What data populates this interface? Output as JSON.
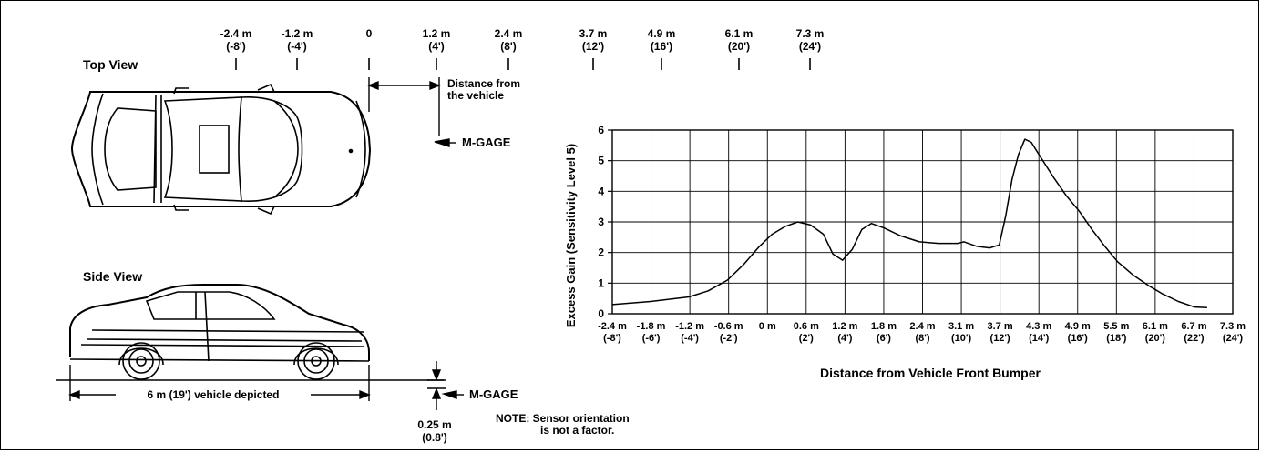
{
  "views": {
    "top_view": "Top View",
    "side_view": "Side View"
  },
  "top_ruler": {
    "ticks": [
      {
        "m": "-2.4 m",
        "ft": "(-8')"
      },
      {
        "m": "-1.2 m",
        "ft": "(-4')"
      },
      {
        "m": "0",
        "ft": ""
      },
      {
        "m": "1.2 m",
        "ft": "(4')"
      },
      {
        "m": "2.4 m",
        "ft": "(8')"
      },
      {
        "m": "3.7 m",
        "ft": "(12')"
      },
      {
        "m": "4.9 m",
        "ft": "(16')"
      },
      {
        "m": "6.1 m",
        "ft": "(20')"
      },
      {
        "m": "7.3 m",
        "ft": "(24')"
      }
    ]
  },
  "labels": {
    "distance_line1": "Distance from",
    "distance_line2": "the vehicle",
    "sensor_top": "M-GAGE",
    "sensor_side": "M-GAGE",
    "vehicle_length": "6 m (19') vehicle depicted",
    "height_line1": "0.25 m",
    "height_line2": "(0.8')",
    "note_line1": "NOTE: Sensor orientation",
    "note_line2": "is not a factor."
  },
  "chart_data": {
    "type": "line",
    "ylabel": "Excess Gain (Sensitivity Level 5)",
    "xlabel": "Distance from Vehicle Front Bumper",
    "xlim": [
      -2.4,
      7.3
    ],
    "ylim": [
      0,
      6
    ],
    "grid": true,
    "y_ticks": [
      0,
      1,
      2,
      3,
      4,
      5,
      6
    ],
    "x_ticks": [
      {
        "v": -2.4,
        "m": "-2.4 m",
        "ft": "(-8')"
      },
      {
        "v": -1.8,
        "m": "-1.8 m",
        "ft": "(-6')"
      },
      {
        "v": -1.2,
        "m": "-1.2 m",
        "ft": "(-4')"
      },
      {
        "v": -0.6,
        "m": "-0.6 m",
        "ft": "(-2')"
      },
      {
        "v": 0,
        "m": "0 m",
        "ft": ""
      },
      {
        "v": 0.6,
        "m": "0.6 m",
        "ft": "(2')"
      },
      {
        "v": 1.2,
        "m": "1.2 m",
        "ft": "(4')"
      },
      {
        "v": 1.8,
        "m": "1.8 m",
        "ft": "(6')"
      },
      {
        "v": 2.4,
        "m": "2.4 m",
        "ft": "(8')"
      },
      {
        "v": 3.1,
        "m": "3.1 m",
        "ft": "(10')"
      },
      {
        "v": 3.7,
        "m": "3.7 m",
        "ft": "(12')"
      },
      {
        "v": 4.3,
        "m": "4.3 m",
        "ft": "(14')"
      },
      {
        "v": 4.9,
        "m": "4.9 m",
        "ft": "(16')"
      },
      {
        "v": 5.5,
        "m": "5.5 m",
        "ft": "(18')"
      },
      {
        "v": 6.1,
        "m": "6.1 m",
        "ft": "(20')"
      },
      {
        "v": 6.7,
        "m": "6.7 m",
        "ft": "(22')"
      },
      {
        "v": 7.3,
        "m": "7.3 m",
        "ft": "(24')"
      }
    ],
    "series": [
      {
        "x": [
          -2.4,
          -1.8,
          -1.2,
          -0.9,
          -0.6,
          -0.35,
          -0.1,
          0.1,
          0.3,
          0.5,
          0.7,
          0.9,
          1.05,
          1.2,
          1.35,
          1.5,
          1.65,
          1.85,
          2.1,
          2.4,
          2.7,
          3.0,
          3.1,
          3.3,
          3.5,
          3.65,
          3.75,
          3.85,
          3.95,
          4.05,
          4.15,
          4.3,
          4.5,
          4.7,
          4.9,
          5.1,
          5.3,
          5.5,
          5.75,
          6.0,
          6.2,
          6.45,
          6.7,
          6.9
        ],
        "y": [
          0.3,
          0.4,
          0.55,
          0.75,
          1.1,
          1.6,
          2.2,
          2.6,
          2.85,
          3.0,
          2.9,
          2.6,
          1.95,
          1.75,
          2.1,
          2.75,
          2.95,
          2.8,
          2.55,
          2.35,
          2.3,
          2.3,
          2.35,
          2.2,
          2.15,
          2.25,
          3.2,
          4.4,
          5.2,
          5.7,
          5.6,
          5.1,
          4.45,
          3.85,
          3.35,
          2.75,
          2.2,
          1.7,
          1.25,
          0.9,
          0.65,
          0.4,
          0.22,
          0.2
        ]
      }
    ]
  }
}
